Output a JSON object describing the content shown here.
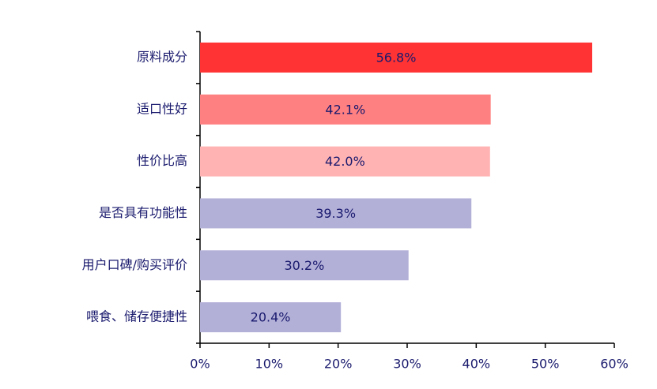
{
  "chart_data": {
    "type": "barh",
    "categories": [
      "原料成分",
      "适口性好",
      "性价比高",
      "是否具有功能性",
      "用户口碑/购买评价",
      "喂食、储存便捷性"
    ],
    "values": [
      56.8,
      42.1,
      42.0,
      39.3,
      30.2,
      20.4
    ],
    "value_labels": [
      "56.8%",
      "42.1%",
      "42.0%",
      "39.3%",
      "30.2%",
      "20.4%"
    ],
    "colors": [
      "#ff3333",
      "#ff8080",
      "#ffb3b3",
      "#b3b0d8",
      "#b3b0d8",
      "#b3b0d8"
    ],
    "xlim": [
      0,
      60
    ],
    "xticks": [
      {
        "value": 0,
        "label": "0%"
      },
      {
        "value": 10,
        "label": "10%"
      },
      {
        "value": 20,
        "label": "20%"
      },
      {
        "value": 30,
        "label": "30%"
      },
      {
        "value": 40,
        "label": "40%"
      },
      {
        "value": 50,
        "label": "50%"
      },
      {
        "value": 60,
        "label": "60%"
      }
    ],
    "grid": false
  }
}
